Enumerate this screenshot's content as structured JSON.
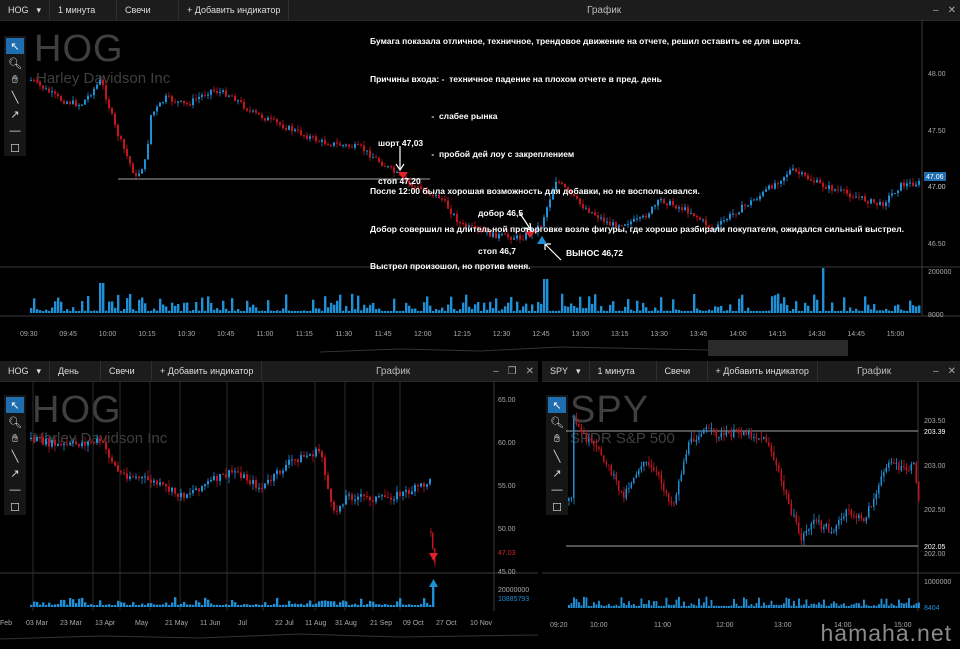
{
  "main": {
    "ticker": "HOG",
    "timeframe": "1 минута",
    "style": "Свечи",
    "add": "+ Добавить индикатор",
    "title": "График",
    "wm_ticker": "HOG",
    "wm_name": "Harley Davidson Inc",
    "price_ticks": [
      "48.00",
      "47.50",
      "47.00",
      "46.50"
    ],
    "last_price": "47.06",
    "last_price2": "47.00",
    "vol_max": "200000",
    "vol_last": "8000",
    "time_ticks": [
      "09:30",
      "09:45",
      "10:00",
      "10:15",
      "10:30",
      "10:45",
      "11:00",
      "11:15",
      "11:30",
      "11:45",
      "12:00",
      "12:15",
      "12:30",
      "12:45",
      "13:00",
      "13:15",
      "13:30",
      "13:45",
      "14:00",
      "14:15",
      "14:30",
      "14:45",
      "15:00"
    ],
    "note_lines": [
      "Бумага показала отличное, техничное, трендовое движение на отчете, решил оставить ее для шорта.",
      "Причины входа: -  техничное падение на плохом отчете в пред. день",
      "                          -  слабее рынка",
      "                          -  пробой дей лоу с закреплением",
      "После 12:00 была хорошая возможность для добавки, но не воспользовался.",
      "Добор совершил на длительной проторговке возле фигуры, где хорошо разбирали покупателя, ожидался сильный выстрел.",
      "Выстрел произошол, но против меня."
    ],
    "short_label_1": "шорт 47,03",
    "short_label_2": "стоп 47,20",
    "add_label_1": "добор 46,5",
    "add_label_2": "стоп 46,7",
    "exit_label": "ВЫНОС 46,72"
  },
  "daily": {
    "ticker": "HOG",
    "timeframe": "День",
    "style": "Свечи",
    "add": "+ Добавить индикатор",
    "title": "График",
    "wm_ticker": "HOG",
    "wm_name": "Harley Davidson Inc",
    "price_ticks": [
      "65.00",
      "60.00",
      "55.00",
      "50.00",
      "45.00"
    ],
    "last_price": "47.03",
    "vol_max": "20000000",
    "vol_last": "10885793",
    "time_ticks": [
      "Feb",
      "03 Mar",
      "23 Mar",
      "13 Apr",
      "May",
      "21 May",
      "11 Jun",
      "Jul",
      "22 Jul",
      "11 Aug",
      "31 Aug",
      "21 Sep",
      "09 Oct",
      "27 Oct",
      "10 Nov"
    ]
  },
  "spy": {
    "ticker": "SPY",
    "timeframe": "1 минута",
    "style": "Свечи",
    "add": "+ Добавить индикатор",
    "title": "График",
    "wm_ticker": "SPY",
    "wm_name": "SPDR S&P 500",
    "price_ticks": [
      "203.50",
      "203.00",
      "202.50",
      "202.00"
    ],
    "level_hi": "203.39",
    "level_lo": "202.05",
    "vol_max": "1000000",
    "vol_last": "8404",
    "time_ticks": [
      "09:20",
      "10:00",
      "11:00",
      "12:00",
      "13:00",
      "14:00",
      "15:00"
    ]
  },
  "colors": {
    "up": "#1f8fd6",
    "down": "#c4141e",
    "bg": "#000000",
    "toolbar": "#1c1c1c"
  },
  "icons": [
    "pointer-icon",
    "zoom-icon",
    "hand-icon",
    "line-icon",
    "arrow-icon",
    "hline-icon",
    "rect-icon"
  ],
  "site": "hamaha.net"
}
